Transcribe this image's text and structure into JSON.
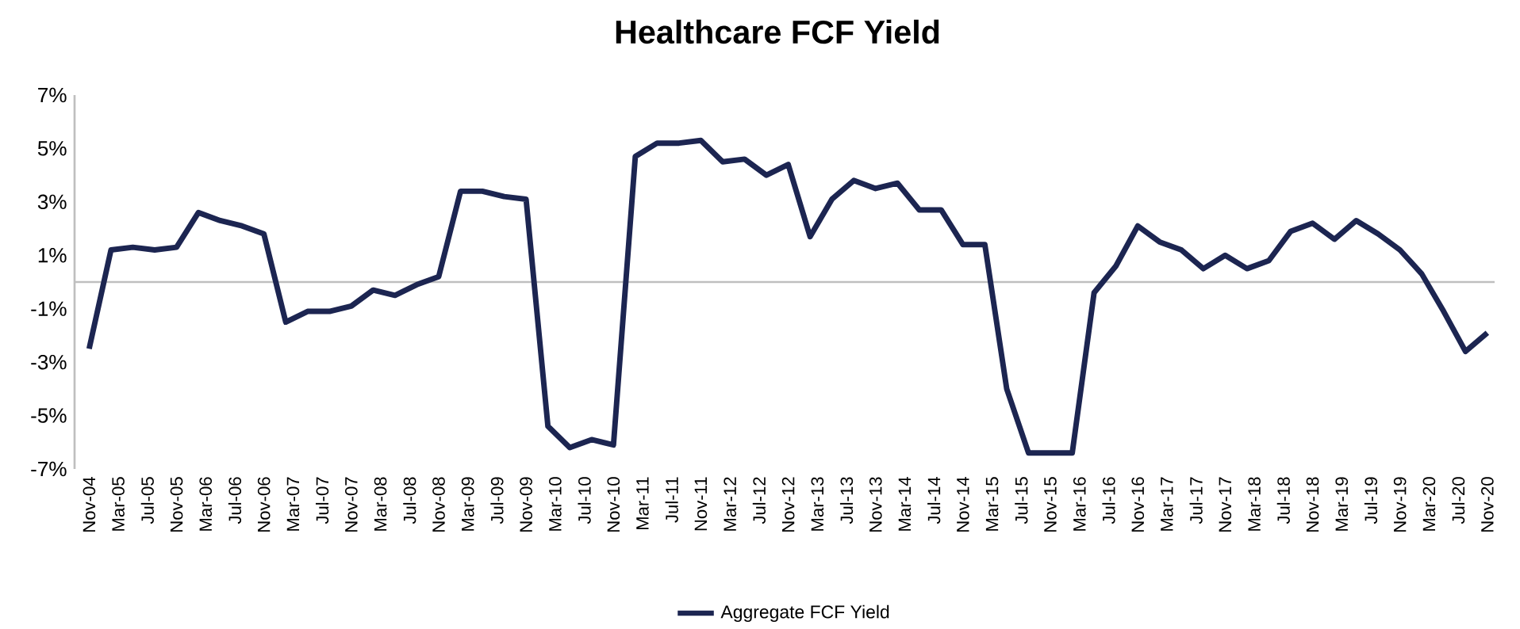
{
  "chart_data": {
    "type": "line",
    "title": "Healthcare FCF Yield",
    "x": [
      "2004-11",
      "2005-02",
      "2005-05",
      "2005-08",
      "2005-11",
      "2006-02",
      "2006-05",
      "2006-08",
      "2006-11",
      "2007-02",
      "2007-05",
      "2007-08",
      "2007-11",
      "2008-02",
      "2008-05",
      "2008-08",
      "2008-11",
      "2009-02",
      "2009-05",
      "2009-08",
      "2009-11",
      "2010-02",
      "2010-05",
      "2010-08",
      "2010-11",
      "2011-02",
      "2011-05",
      "2011-08",
      "2011-11",
      "2012-02",
      "2012-05",
      "2012-08",
      "2012-11",
      "2013-02",
      "2013-05",
      "2013-08",
      "2013-11",
      "2014-02",
      "2014-05",
      "2014-08",
      "2014-11",
      "2015-02",
      "2015-05",
      "2015-08",
      "2015-11",
      "2016-02",
      "2016-05",
      "2016-08",
      "2016-11",
      "2017-02",
      "2017-05",
      "2017-08",
      "2017-11",
      "2018-02",
      "2018-05",
      "2018-08",
      "2018-11",
      "2019-02",
      "2019-05",
      "2019-08",
      "2019-11",
      "2020-02",
      "2020-05",
      "2020-08",
      "2020-11"
    ],
    "series": [
      {
        "name": "Aggregate FCF Yield",
        "color": "#1c2551",
        "values": [
          -2.5,
          1.2,
          1.3,
          1.2,
          1.3,
          2.6,
          2.3,
          2.1,
          1.8,
          -1.5,
          -1.1,
          -1.1,
          -0.9,
          -0.3,
          -0.5,
          -0.1,
          0.2,
          3.4,
          3.4,
          3.2,
          3.1,
          -5.4,
          -6.2,
          -5.9,
          -6.1,
          4.7,
          5.2,
          5.2,
          5.3,
          4.5,
          4.6,
          4.0,
          4.4,
          1.7,
          3.1,
          3.8,
          3.5,
          3.7,
          2.7,
          2.7,
          1.4,
          1.4,
          -4.0,
          -6.4,
          -6.4,
          -6.4,
          -0.4,
          0.6,
          2.1,
          1.5,
          1.2,
          0.5,
          1.0,
          0.5,
          0.8,
          1.9,
          2.2,
          1.6,
          2.3,
          1.8,
          1.2,
          0.3,
          -1.1,
          -2.6,
          -1.9
        ]
      }
    ],
    "xlim": [
      "2004-09",
      "2020-12"
    ],
    "xticks": [
      {
        "value": "2004-11",
        "label": "Nov-04"
      },
      {
        "value": "2005-03",
        "label": "Mar-05"
      },
      {
        "value": "2005-07",
        "label": "Jul-05"
      },
      {
        "value": "2005-11",
        "label": "Nov-05"
      },
      {
        "value": "2006-03",
        "label": "Mar-06"
      },
      {
        "value": "2006-07",
        "label": "Jul-06"
      },
      {
        "value": "2006-11",
        "label": "Nov-06"
      },
      {
        "value": "2007-03",
        "label": "Mar-07"
      },
      {
        "value": "2007-07",
        "label": "Jul-07"
      },
      {
        "value": "2007-11",
        "label": "Nov-07"
      },
      {
        "value": "2008-03",
        "label": "Mar-08"
      },
      {
        "value": "2008-07",
        "label": "Jul-08"
      },
      {
        "value": "2008-11",
        "label": "Nov-08"
      },
      {
        "value": "2009-03",
        "label": "Mar-09"
      },
      {
        "value": "2009-07",
        "label": "Jul-09"
      },
      {
        "value": "2009-11",
        "label": "Nov-09"
      },
      {
        "value": "2010-03",
        "label": "Mar-10"
      },
      {
        "value": "2010-07",
        "label": "Jul-10"
      },
      {
        "value": "2010-11",
        "label": "Nov-10"
      },
      {
        "value": "2011-03",
        "label": "Mar-11"
      },
      {
        "value": "2011-07",
        "label": "Jul-11"
      },
      {
        "value": "2011-11",
        "label": "Nov-11"
      },
      {
        "value": "2012-03",
        "label": "Mar-12"
      },
      {
        "value": "2012-07",
        "label": "Jul-12"
      },
      {
        "value": "2012-11",
        "label": "Nov-12"
      },
      {
        "value": "2013-03",
        "label": "Mar-13"
      },
      {
        "value": "2013-07",
        "label": "Jul-13"
      },
      {
        "value": "2013-11",
        "label": "Nov-13"
      },
      {
        "value": "2014-03",
        "label": "Mar-14"
      },
      {
        "value": "2014-07",
        "label": "Jul-14"
      },
      {
        "value": "2014-11",
        "label": "Nov-14"
      },
      {
        "value": "2015-03",
        "label": "Mar-15"
      },
      {
        "value": "2015-07",
        "label": "Jul-15"
      },
      {
        "value": "2015-11",
        "label": "Nov-15"
      },
      {
        "value": "2016-03",
        "label": "Mar-16"
      },
      {
        "value": "2016-07",
        "label": "Jul-16"
      },
      {
        "value": "2016-11",
        "label": "Nov-16"
      },
      {
        "value": "2017-03",
        "label": "Mar-17"
      },
      {
        "value": "2017-07",
        "label": "Jul-17"
      },
      {
        "value": "2017-11",
        "label": "Nov-17"
      },
      {
        "value": "2018-03",
        "label": "Mar-18"
      },
      {
        "value": "2018-07",
        "label": "Jul-18"
      },
      {
        "value": "2018-11",
        "label": "Nov-18"
      },
      {
        "value": "2019-03",
        "label": "Mar-19"
      },
      {
        "value": "2019-07",
        "label": "Jul-19"
      },
      {
        "value": "2019-11",
        "label": "Nov-19"
      },
      {
        "value": "2020-03",
        "label": "Mar-20"
      },
      {
        "value": "2020-07",
        "label": "Jul-20"
      },
      {
        "value": "2020-11",
        "label": "Nov-20"
      }
    ],
    "ylim": [
      -7,
      7
    ],
    "yticks": [
      {
        "value": -7,
        "label": "-7%"
      },
      {
        "value": -5,
        "label": "-5%"
      },
      {
        "value": -3,
        "label": "-3%"
      },
      {
        "value": -1,
        "label": "-1%"
      },
      {
        "value": 1,
        "label": "1%"
      },
      {
        "value": 3,
        "label": "3%"
      },
      {
        "value": 5,
        "label": "5%"
      },
      {
        "value": 7,
        "label": "7%"
      }
    ],
    "legend": "bottom",
    "grid": false,
    "marker": "none",
    "line_style": "solid"
  }
}
